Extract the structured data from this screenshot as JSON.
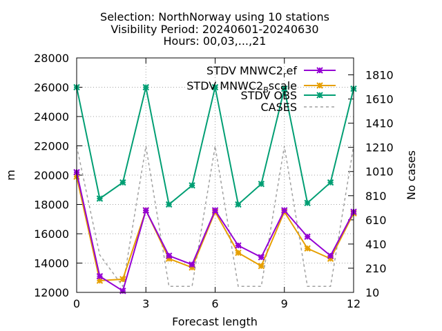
{
  "chart_data": {
    "type": "line",
    "title": {
      "line1": "Selection: NorthNorway using    10 stations",
      "line2": "Visibility   Period: 20240601-20240630",
      "line3": "Hours: 00,03,...,21"
    },
    "xlabel": "Forecast length",
    "ylabel": "m",
    "y2label": "No cases",
    "xlim": [
      0,
      12
    ],
    "ylim": [
      12000,
      28000
    ],
    "y2lim": [
      10,
      1950
    ],
    "x_ticks": [
      "0",
      "3",
      "6",
      "9",
      "12"
    ],
    "y_ticks": [
      "12000",
      "14000",
      "16000",
      "18000",
      "20000",
      "22000",
      "24000",
      "26000",
      "28000"
    ],
    "y2_ticks": [
      "10",
      "210",
      "410",
      "610",
      "810",
      "1010",
      "1210",
      "1410",
      "1610",
      "1810"
    ],
    "grid": true,
    "legend_position": "top-right",
    "x": [
      0,
      1,
      2,
      3,
      4,
      5,
      6,
      7,
      8,
      9,
      10,
      11,
      12
    ],
    "series": [
      {
        "name": "STDV MNWC2_ref",
        "legend_main": "STDV MNWC2",
        "legend_sub": "r",
        "legend_tail": "ef",
        "color": "#9400d3",
        "axis": "y1",
        "values": [
          20200,
          13100,
          12100,
          17600,
          14500,
          13900,
          17600,
          15200,
          14400,
          17600,
          15800,
          14500,
          17500
        ]
      },
      {
        "name": "STDV MNWC2_Bscale",
        "legend_main": "STDV MNWC2",
        "legend_sub": "B",
        "legend_tail": "scale",
        "color": "#e69f00",
        "axis": "y1",
        "values": [
          19900,
          12800,
          12900,
          17600,
          14300,
          13700,
          17500,
          14700,
          13800,
          17500,
          15000,
          14300,
          17400
        ]
      },
      {
        "name": "STDV OBS",
        "color": "#009e73",
        "axis": "y1",
        "values": [
          26000,
          18400,
          19500,
          26000,
          18000,
          19300,
          26000,
          18000,
          19400,
          25900,
          18100,
          19500,
          25900
        ]
      },
      {
        "name": "CASES",
        "color": "#a0a0a0",
        "axis": "y2",
        "dashed": true,
        "values": [
          1220,
          320,
          60,
          1220,
          60,
          60,
          1220,
          60,
          60,
          1220,
          60,
          60,
          1220
        ]
      }
    ]
  }
}
